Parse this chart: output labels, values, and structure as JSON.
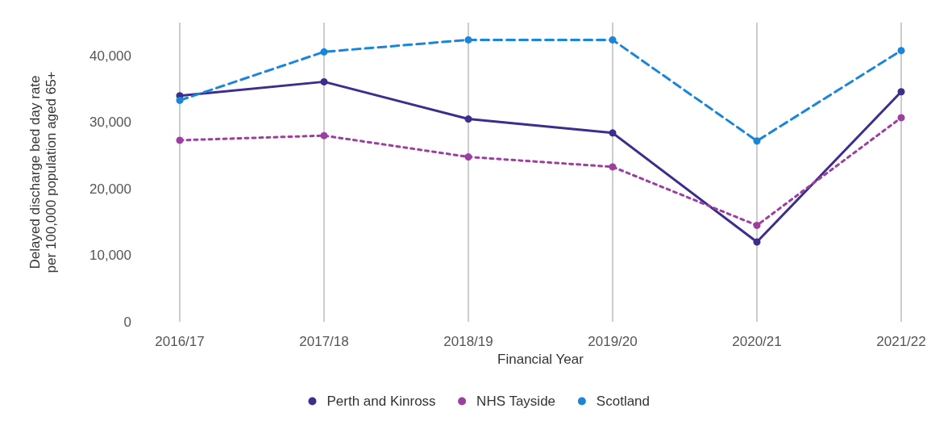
{
  "chart_data": {
    "type": "line",
    "xlabel": "Financial Year",
    "ylabel": "Delayed discharge bed day rate\nper 100,000 population aged 65+",
    "categories": [
      "2016/17",
      "2017/18",
      "2018/19",
      "2019/20",
      "2020/21",
      "2021/22"
    ],
    "series": [
      {
        "name": "Perth and Kinross",
        "color": "#3d2d8c",
        "line_style": "solid",
        "values": [
          34000,
          36100,
          30500,
          28400,
          12000,
          34600
        ]
      },
      {
        "name": "NHS Tayside",
        "color": "#9c3fa0",
        "line_style": "dotted",
        "values": [
          27300,
          28000,
          24800,
          23300,
          14500,
          30700
        ]
      },
      {
        "name": "Scotland",
        "color": "#1a86d9",
        "line_style": "dashed",
        "values": [
          33300,
          40600,
          42400,
          42400,
          27200,
          40800
        ]
      }
    ],
    "ylim": [
      0,
      45000
    ],
    "yticks": [
      0,
      {
        "value": 10000,
        "label": "10,000"
      },
      {
        "value": 20000,
        "label": "20,000"
      },
      {
        "value": 30000,
        "label": "30,000"
      },
      {
        "value": 40000,
        "label": "40,000"
      }
    ],
    "grid": "x",
    "legend": "bottom",
    "marker": "circle"
  }
}
